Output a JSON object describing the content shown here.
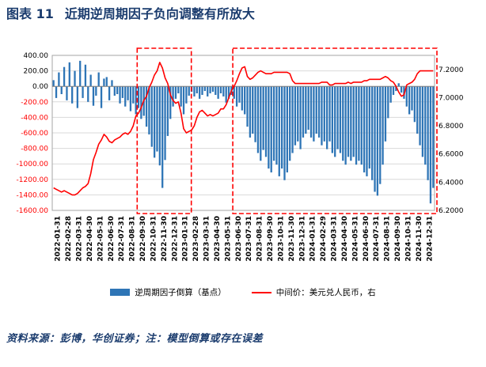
{
  "figure": {
    "label": "图表 11",
    "title": "近期逆周期因子负向调整有所放大"
  },
  "source_note": "资料来源：彭博，华创证券；注：模型倒算或存在误差",
  "colors": {
    "title": "#1B3C6E",
    "bar": "#2E75B6",
    "line": "#FF0000",
    "negative_tick": "#FF0000",
    "highlight": "#FF0000",
    "gridline": "#D9D9D9",
    "plot_border": "#A6A6A6"
  },
  "legend": [
    {
      "type": "bar",
      "label": "逆周期因子倒算（基点）",
      "color": "#2E75B6"
    },
    {
      "type": "line",
      "label": "中间价：美元兑人民币，右",
      "color": "#FF0000"
    }
  ],
  "chart_data": {
    "type": "bar+line",
    "title": "近期逆周期因子负向调整有所放大",
    "grid": true,
    "legend_position": "bottom",
    "points_per_month": 4,
    "x_labels": [
      "2022-01-31",
      "2022-02-28",
      "2022-03-31",
      "2022-04-30",
      "2022-05-31",
      "2022-06-30",
      "2022-07-31",
      "2022-08-31",
      "2022-09-30",
      "2022-10-31",
      "2022-11-30",
      "2022-12-31",
      "2023-01-31",
      "2023-02-28",
      "2023-03-31",
      "2023-04-30",
      "2023-05-31",
      "2023-06-30",
      "2023-07-31",
      "2023-08-31",
      "2023-09-30",
      "2023-10-31",
      "2023-11-30",
      "2023-12-31",
      "2024-01-31",
      "2024-02-29",
      "2024-03-31",
      "2024-04-30",
      "2024-05-31",
      "2024-06-30",
      "2024-07-31",
      "2024-08-31",
      "2024-09-30",
      "2024-10-31",
      "2024-11-30",
      "2024-12-31"
    ],
    "left_axis": {
      "min": -1600,
      "max": 400,
      "step": 200,
      "tick_values": [
        400,
        200,
        0,
        -200,
        -400,
        -600,
        -800,
        -1000,
        -1200,
        -1400,
        -1600
      ],
      "tick_labels": [
        "400.00",
        "200.00",
        "0.00",
        "-200.00",
        "-400.00",
        "-600.00",
        "-800.00",
        "-1000.00",
        "-1200.00",
        "-1400.00",
        "-1600.00"
      ],
      "negative_color": "#FF0000"
    },
    "right_axis": {
      "min": 6.2,
      "max": 7.3,
      "step": 0.2,
      "tick_values": [
        7.2,
        7.0,
        6.8,
        6.6,
        6.4,
        6.2
      ],
      "tick_labels": [
        "7.2000",
        "7.0000",
        "6.8000",
        "6.6000",
        "6.4000",
        "6.2000"
      ]
    },
    "series": [
      {
        "name": "逆周期因子倒算（基点）",
        "type": "bar",
        "axis": "left",
        "color": "#2E75B6",
        "values": [
          80,
          -150,
          180,
          -100,
          250,
          -180,
          310,
          -220,
          200,
          -280,
          330,
          -150,
          280,
          -200,
          150,
          -250,
          -120,
          180,
          -280,
          100,
          120,
          -180,
          80,
          -120,
          -100,
          -220,
          -150,
          -260,
          -180,
          -320,
          -220,
          -360,
          -280,
          -420,
          -380,
          -520,
          -620,
          -780,
          -920,
          -840,
          -1020,
          -1310,
          -950,
          -640,
          -420,
          -260,
          -160,
          -90,
          -260,
          -360,
          -220,
          -120,
          -70,
          -130,
          -90,
          -160,
          -110,
          -60,
          -130,
          -90,
          -70,
          -110,
          -160,
          -90,
          -130,
          -210,
          -160,
          -110,
          -160,
          -260,
          -210,
          -310,
          -360,
          -520,
          -660,
          -610,
          -720,
          -860,
          -960,
          -820,
          -910,
          -1060,
          -1110,
          -960,
          -1010,
          -1160,
          -1060,
          -1210,
          -1110,
          -960,
          -860,
          -760,
          -710,
          -810,
          -660,
          -610,
          -560,
          -660,
          -710,
          -610,
          -660,
          -760,
          -710,
          -810,
          -710,
          -860,
          -910,
          -810,
          -860,
          -960,
          -1010,
          -910,
          -960,
          -910,
          -1010,
          -960,
          -1010,
          -1110,
          -1160,
          -1060,
          -1210,
          -1360,
          -1410,
          -1260,
          -1010,
          -710,
          -410,
          -210,
          -110,
          -60,
          40,
          -80,
          -160,
          -260,
          -360,
          -310,
          -460,
          -610,
          -760,
          -910,
          -1010,
          -1210,
          -1510,
          -1310
        ]
      },
      {
        "name": "中间价：美元兑人民币，右",
        "type": "line",
        "axis": "right",
        "color": "#FF0000",
        "values": [
          6.36,
          6.35,
          6.34,
          6.33,
          6.34,
          6.33,
          6.32,
          6.31,
          6.31,
          6.32,
          6.34,
          6.36,
          6.37,
          6.39,
          6.46,
          6.56,
          6.61,
          6.67,
          6.7,
          6.74,
          6.72,
          6.69,
          6.68,
          6.7,
          6.71,
          6.72,
          6.74,
          6.75,
          6.74,
          6.76,
          6.8,
          6.87,
          6.89,
          6.93,
          6.98,
          7.01,
          7.07,
          7.11,
          7.16,
          7.19,
          7.25,
          7.21,
          7.14,
          7.1,
          7.02,
          6.98,
          6.96,
          6.97,
          6.89,
          6.78,
          6.75,
          6.76,
          6.77,
          6.8,
          6.86,
          6.9,
          6.91,
          6.89,
          6.87,
          6.88,
          6.87,
          6.88,
          6.89,
          6.92,
          6.92,
          6.95,
          7.0,
          7.05,
          7.08,
          7.12,
          7.17,
          7.21,
          7.22,
          7.15,
          7.13,
          7.14,
          7.16,
          7.18,
          7.19,
          7.18,
          7.17,
          7.17,
          7.17,
          7.18,
          7.18,
          7.18,
          7.18,
          7.18,
          7.18,
          7.17,
          7.12,
          7.1,
          7.1,
          7.1,
          7.1,
          7.1,
          7.1,
          7.1,
          7.1,
          7.1,
          7.1,
          7.11,
          7.11,
          7.11,
          7.09,
          7.09,
          7.1,
          7.1,
          7.1,
          7.1,
          7.1,
          7.11,
          7.1,
          7.11,
          7.11,
          7.11,
          7.11,
          7.12,
          7.12,
          7.13,
          7.13,
          7.13,
          7.13,
          7.13,
          7.14,
          7.15,
          7.14,
          7.12,
          7.11,
          7.08,
          7.04,
          7.01,
          7.02,
          7.09,
          7.1,
          7.11,
          7.13,
          7.17,
          7.19,
          7.19,
          7.19,
          7.19,
          7.19,
          7.19
        ]
      }
    ],
    "highlight_boxes": [
      {
        "start_index": 32,
        "end_index": 51.5
      },
      {
        "start_index": 68,
        "end_index": 144
      }
    ]
  }
}
